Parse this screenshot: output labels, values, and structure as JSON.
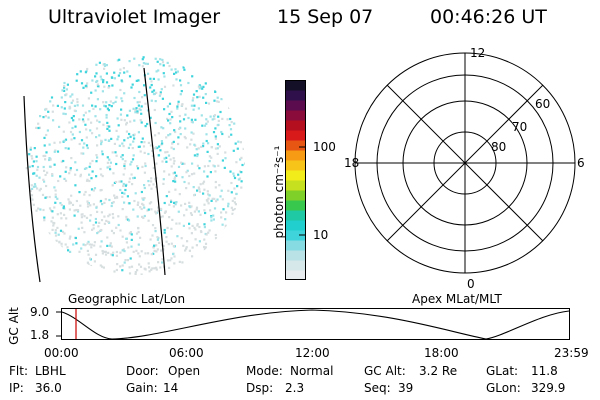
{
  "header": {
    "title": "Ultraviolet Imager",
    "date": "15 Sep 07",
    "time": "00:46:26 UT"
  },
  "colorbar": {
    "label": "photon cm⁻²s⁻¹",
    "ticks": [
      "100",
      "10"
    ],
    "tick_values": [
      100,
      10
    ],
    "colors": [
      "#e8ecee",
      "#d6e8ea",
      "#b8e2e6",
      "#86dae2",
      "#3fd4dc",
      "#22cfcf",
      "#1fc9a3",
      "#38c84e",
      "#7fd12a",
      "#c6e01f",
      "#f2ec1a",
      "#f7c51a",
      "#f79a14",
      "#e85614",
      "#d81a1a",
      "#b40f1f",
      "#8a0c3a",
      "#5a0c4e",
      "#30104a",
      "#141028"
    ]
  },
  "geo_panel": {
    "label": "Geographic Lat/Lon",
    "point_color": "#3fd4dc"
  },
  "polar_panel": {
    "label": "Apex MLat/MLT",
    "mlt_labels": {
      "top": "12",
      "left": "18",
      "right": "6",
      "bottom": "0"
    },
    "lat_labels": [
      "60",
      "70",
      "80"
    ]
  },
  "timeline": {
    "y_label": "GC Alt",
    "y_ticks": [
      "9.0",
      "1.8"
    ],
    "x_ticks": [
      "00:00",
      "06:00",
      "12:00",
      "18:00",
      "23:59"
    ],
    "marker_time": "00:46:26",
    "marker_color": "#cc0000"
  },
  "info": [
    {
      "label": "Flt:",
      "value": "LBHL"
    },
    {
      "label": "Door:",
      "value": "Open"
    },
    {
      "label": "Mode:",
      "value": "Normal"
    },
    {
      "label": "GC Alt:",
      "value": "3.2 Re"
    },
    {
      "label": "GLat:",
      "value": "11.8"
    },
    {
      "label": "IP:",
      "value": "36.0"
    },
    {
      "label": "Gain:",
      "value": "14"
    },
    {
      "label": "Dsp:",
      "value": "2.3"
    },
    {
      "label": "Seq:",
      "value": "39"
    },
    {
      "label": "GLon:",
      "value": "329.9"
    }
  ]
}
